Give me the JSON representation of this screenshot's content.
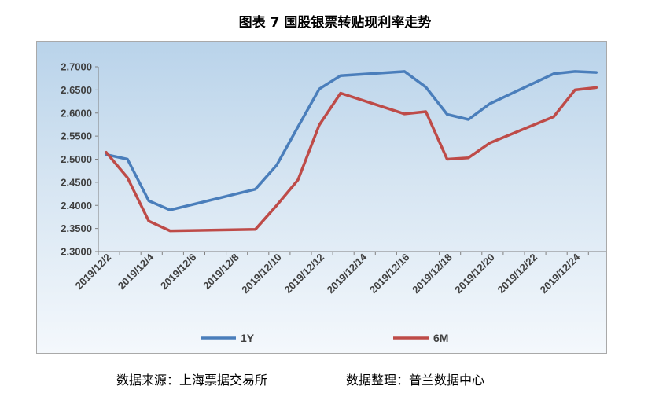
{
  "chart_data": {
    "type": "line",
    "title": "图表 7  国股银票转贴现利率走势",
    "xlabel": "",
    "ylabel": "",
    "ylim": [
      2.3,
      2.7
    ],
    "yticks": [
      "2.7000",
      "2.6500",
      "2.6000",
      "2.5500",
      "2.5000",
      "2.4500",
      "2.4000",
      "2.3500",
      "2.3000"
    ],
    "x_tick_labels": [
      "2019/12/2",
      "2019/12/4",
      "2019/12/6",
      "2019/12/8",
      "2019/12/10",
      "2019/12/12",
      "2019/12/14",
      "2019/12/16",
      "2019/12/18",
      "2019/12/20",
      "2019/12/22",
      "2019/12/24"
    ],
    "x": [
      "2019/12/2",
      "2019/12/3",
      "2019/12/4",
      "2019/12/5",
      "2019/12/9",
      "2019/12/10",
      "2019/12/11",
      "2019/12/12",
      "2019/12/13",
      "2019/12/16",
      "2019/12/17",
      "2019/12/18",
      "2019/12/19",
      "2019/12/20",
      "2019/12/23",
      "2019/12/24",
      "2019/12/25"
    ],
    "series": [
      {
        "name": "1Y",
        "color": "#4a7ebb",
        "values": [
          2.51,
          2.5,
          2.41,
          2.39,
          2.435,
          2.487,
          2.57,
          2.652,
          2.681,
          2.69,
          2.656,
          2.597,
          2.586,
          2.62,
          2.685,
          2.69,
          2.688
        ]
      },
      {
        "name": "6M",
        "color": "#be4b48",
        "values": [
          2.515,
          2.46,
          2.366,
          2.345,
          2.348,
          2.4,
          2.455,
          2.574,
          2.643,
          2.598,
          2.603,
          2.5,
          2.503,
          2.535,
          2.592,
          2.65,
          2.655
        ]
      }
    ],
    "grid": false,
    "legend_position": "bottom"
  },
  "legend": {
    "series1": "1Y",
    "series2": "6M"
  },
  "footer": {
    "source": "数据来源：上海票据交易所",
    "compiler": "数据整理：普兰数据中心"
  }
}
